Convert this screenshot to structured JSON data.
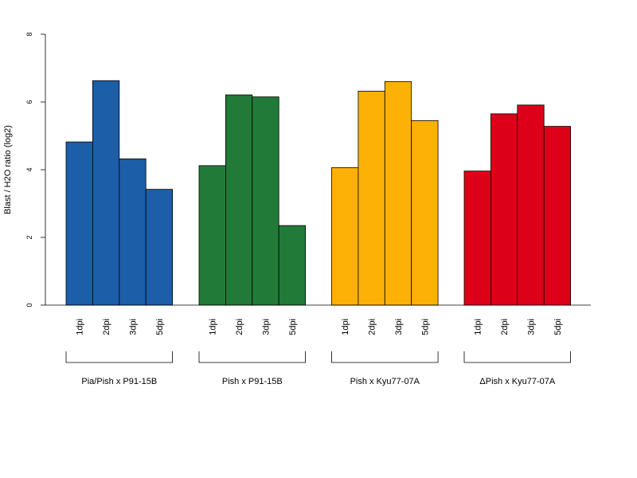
{
  "chart_data": {
    "type": "bar",
    "title": "",
    "xlabel": "",
    "ylabel": "Blast / H2O ratio (log2)",
    "ylim": [
      0,
      8
    ],
    "yticks": [
      0,
      2,
      4,
      6,
      8
    ],
    "grid": false,
    "legend": "none",
    "groups": [
      {
        "name": "Pia/Pish x P91-15B",
        "color": "#1c5ea8",
        "categories": [
          "1dpi",
          "2dpi",
          "3dpi",
          "5dpi"
        ],
        "values": [
          4.82,
          6.63,
          4.32,
          3.42
        ]
      },
      {
        "name": "Pish x P91-15B",
        "color": "#227a38",
        "categories": [
          "1dpi",
          "2dpi",
          "3dpi",
          "5dpi"
        ],
        "values": [
          4.12,
          6.21,
          6.15,
          2.35
        ]
      },
      {
        "name": "Pish x Kyu77-07A",
        "color": "#fdb106",
        "categories": [
          "1dpi",
          "2dpi",
          "3dpi",
          "5dpi"
        ],
        "values": [
          4.06,
          6.32,
          6.6,
          5.45
        ]
      },
      {
        "name": "ΔPish x Kyu77-07A",
        "color": "#dc0018",
        "categories": [
          "1dpi",
          "2dpi",
          "3dpi",
          "5dpi"
        ],
        "values": [
          3.96,
          5.65,
          5.91,
          5.28
        ]
      }
    ]
  }
}
